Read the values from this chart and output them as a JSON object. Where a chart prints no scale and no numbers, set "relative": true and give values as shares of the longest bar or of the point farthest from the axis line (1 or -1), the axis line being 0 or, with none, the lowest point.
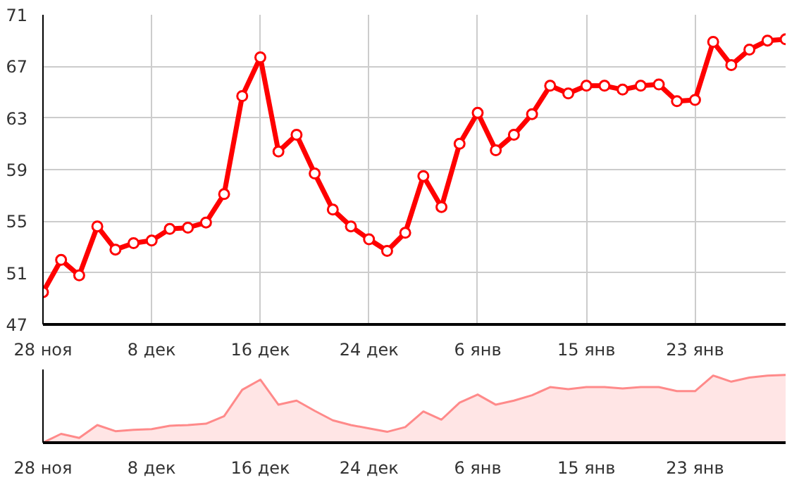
{
  "chart_data": [
    {
      "type": "line",
      "categories": [
        "28 ноя",
        null,
        null,
        null,
        null,
        null,
        "8 дек",
        null,
        null,
        null,
        null,
        null,
        "16 дек",
        null,
        null,
        null,
        null,
        null,
        "24 дек",
        null,
        null,
        null,
        null,
        null,
        "6 янв",
        null,
        null,
        null,
        null,
        null,
        "15 янв",
        null,
        null,
        null,
        null,
        null,
        "23 янв",
        null,
        null,
        null,
        null,
        null
      ],
      "series": [
        {
          "color": "#ff0000",
          "values": [
            49.5,
            52.0,
            50.8,
            54.6,
            52.8,
            53.3,
            53.5,
            54.4,
            54.5,
            54.9,
            57.1,
            64.7,
            67.7,
            60.4,
            61.7,
            58.7,
            55.9,
            54.6,
            53.6,
            52.7,
            54.1,
            58.5,
            56.1,
            61.0,
            63.4,
            60.5,
            61.7,
            63.3,
            65.5,
            64.9,
            65.5,
            65.5,
            65.2,
            65.5,
            65.6,
            64.3,
            64.4,
            68.9,
            67.1,
            68.3,
            69.0,
            69.1
          ]
        }
      ],
      "ylim": [
        47,
        71
      ],
      "yticks": [
        47,
        51,
        55,
        59,
        63,
        67,
        71
      ],
      "grid": true,
      "marker": "circle",
      "line_style": "solid"
    },
    {
      "type": "area",
      "relative": true,
      "categories": [
        "28 ноя",
        null,
        null,
        null,
        null,
        null,
        "8 дек",
        null,
        null,
        null,
        null,
        null,
        "16 дек",
        null,
        null,
        null,
        null,
        null,
        "24 дек",
        null,
        null,
        null,
        null,
        null,
        "6 янв",
        null,
        null,
        null,
        null,
        null,
        "15 янв",
        null,
        null,
        null,
        null,
        null,
        "23 янв",
        null,
        null,
        null,
        null,
        null
      ],
      "series": [
        {
          "color": "#ff8a8a",
          "values": [
            0,
            0.13,
            0.07,
            0.26,
            0.17,
            0.19,
            0.2,
            0.25,
            0.26,
            0.28,
            0.39,
            0.78,
            0.93,
            0.56,
            0.62,
            0.47,
            0.33,
            0.26,
            0.21,
            0.16,
            0.23,
            0.46,
            0.34,
            0.59,
            0.71,
            0.56,
            0.62,
            0.7,
            0.82,
            0.79,
            0.82,
            0.82,
            0.8,
            0.82,
            0.82,
            0.76,
            0.76,
            0.99,
            0.9,
            0.96,
            0.99,
            1
          ]
        }
      ],
      "tick_labels": "x"
    }
  ]
}
